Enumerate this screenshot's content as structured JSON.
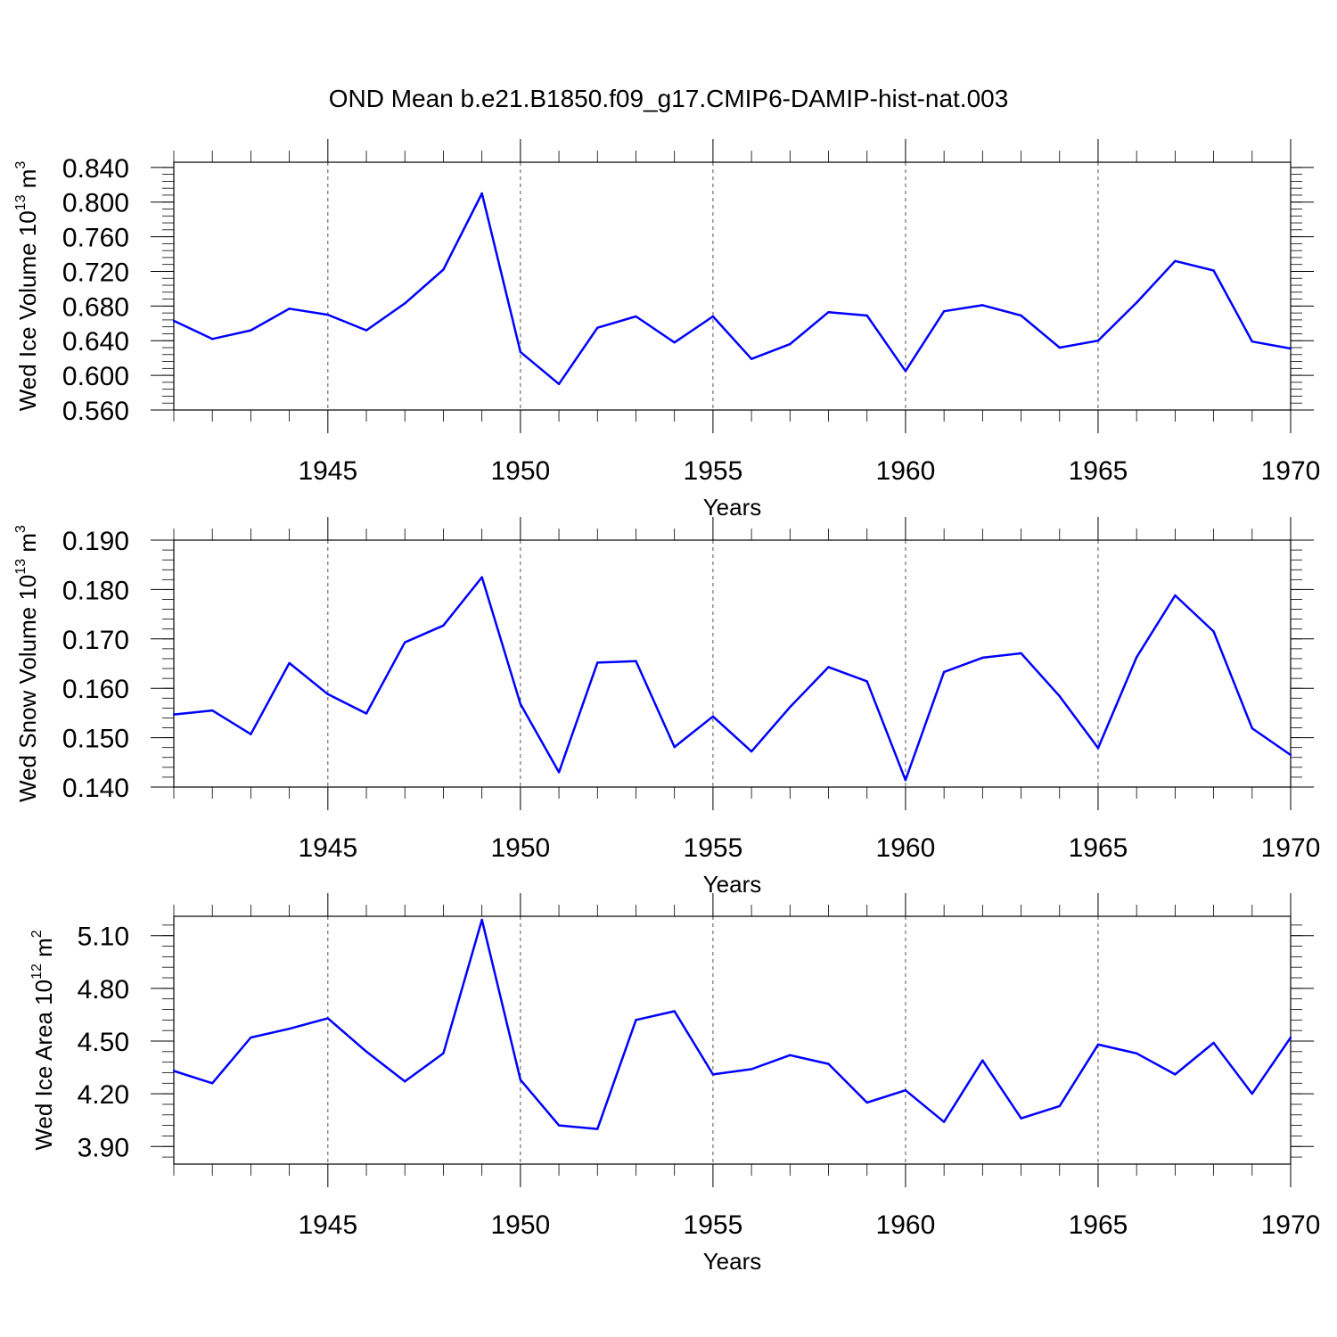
{
  "title": "OND Mean b.e21.B1850.f09_g17.CMIP6-DAMIP-hist-nat.003",
  "chart_data": [
    {
      "type": "line",
      "ylabel_main": "Wed Ice Volume 10",
      "ylabel_exp1": "13",
      "ylabel_unit": " m",
      "ylabel_exp2": "3",
      "xlabel": "Years",
      "xlim": [
        1941,
        1970
      ],
      "ylim": [
        0.56,
        0.846
      ],
      "yticks": [
        0.56,
        0.6,
        0.64,
        0.68,
        0.72,
        0.76,
        0.8,
        0.84
      ],
      "yticklabels": [
        "0.560",
        "0.600",
        "0.640",
        "0.680",
        "0.720",
        "0.760",
        "0.800",
        "0.840"
      ],
      "xticks": [
        1945,
        1950,
        1955,
        1960,
        1965,
        1970
      ],
      "xticklabels": [
        "1945",
        "1950",
        "1955",
        "1960",
        "1965",
        "1970"
      ],
      "grid": "vertical dashed at major x ticks",
      "color": "#0000ff",
      "x": [
        1941,
        1942,
        1943,
        1944,
        1945,
        1946,
        1947,
        1948,
        1949,
        1950,
        1951,
        1952,
        1953,
        1954,
        1955,
        1956,
        1957,
        1958,
        1959,
        1960,
        1961,
        1962,
        1963,
        1964,
        1965,
        1966,
        1967,
        1968,
        1969,
        1970
      ],
      "values": [
        0.663,
        0.642,
        0.652,
        0.677,
        0.67,
        0.652,
        0.683,
        0.722,
        0.81,
        0.627,
        0.59,
        0.655,
        0.668,
        0.638,
        0.668,
        0.619,
        0.636,
        0.673,
        0.669,
        0.605,
        0.674,
        0.681,
        0.669,
        0.632,
        0.64,
        0.684,
        0.732,
        0.721,
        0.639,
        0.631
      ]
    },
    {
      "type": "line",
      "ylabel_main": "Wed Snow Volume 10",
      "ylabel_exp1": "13",
      "ylabel_unit": " m",
      "ylabel_exp2": "3",
      "xlabel": "Years",
      "xlim": [
        1941,
        1970
      ],
      "ylim": [
        0.14,
        0.19
      ],
      "yticks": [
        0.14,
        0.15,
        0.16,
        0.17,
        0.18,
        0.19
      ],
      "yticklabels": [
        "0.140",
        "0.150",
        "0.160",
        "0.170",
        "0.180",
        "0.190"
      ],
      "xticks": [
        1945,
        1950,
        1955,
        1960,
        1965,
        1970
      ],
      "xticklabels": [
        "1945",
        "1950",
        "1955",
        "1960",
        "1965",
        "1970"
      ],
      "grid": "vertical dashed at major x ticks",
      "color": "#0000ff",
      "x": [
        1941,
        1942,
        1943,
        1944,
        1945,
        1946,
        1947,
        1948,
        1949,
        1950,
        1951,
        1952,
        1953,
        1954,
        1955,
        1956,
        1957,
        1958,
        1959,
        1960,
        1961,
        1962,
        1963,
        1964,
        1965,
        1966,
        1967,
        1968,
        1969,
        1970
      ],
      "values": [
        0.1547,
        0.1555,
        0.1507,
        0.1651,
        0.1588,
        0.1549,
        0.1693,
        0.1727,
        0.1825,
        0.1568,
        0.143,
        0.1652,
        0.1655,
        0.1481,
        0.1543,
        0.1472,
        0.1562,
        0.1643,
        0.1614,
        0.1414,
        0.1633,
        0.1662,
        0.1671,
        0.1584,
        0.1479,
        0.1663,
        0.1788,
        0.1715,
        0.1519,
        0.1465
      ]
    },
    {
      "type": "line",
      "ylabel_main": "Wed Ice Area 10",
      "ylabel_exp1": "12",
      "ylabel_unit": " m",
      "ylabel_exp2": "2",
      "xlabel": "Years",
      "xlim": [
        1941,
        1970
      ],
      "ylim": [
        3.8,
        5.21
      ],
      "yticks": [
        3.9,
        4.2,
        4.5,
        4.8,
        5.1
      ],
      "yticklabels": [
        "3.90",
        "4.20",
        "4.50",
        "4.80",
        "5.10"
      ],
      "xticks": [
        1945,
        1950,
        1955,
        1960,
        1965,
        1970
      ],
      "xticklabels": [
        "1945",
        "1950",
        "1955",
        "1960",
        "1965",
        "1970"
      ],
      "grid": "vertical dashed at major x ticks",
      "color": "#0000ff",
      "x": [
        1941,
        1942,
        1943,
        1944,
        1945,
        1946,
        1947,
        1948,
        1949,
        1950,
        1951,
        1952,
        1953,
        1954,
        1955,
        1956,
        1957,
        1958,
        1959,
        1960,
        1961,
        1962,
        1963,
        1964,
        1965,
        1966,
        1967,
        1968,
        1969,
        1970
      ],
      "values": [
        4.33,
        4.26,
        4.52,
        4.57,
        4.63,
        4.44,
        4.27,
        4.43,
        5.19,
        4.28,
        4.02,
        4.0,
        4.62,
        4.67,
        4.31,
        4.34,
        4.42,
        4.37,
        4.15,
        4.22,
        4.04,
        4.39,
        4.06,
        4.13,
        4.48,
        4.43,
        4.31,
        4.49,
        4.2,
        4.52
      ]
    }
  ]
}
